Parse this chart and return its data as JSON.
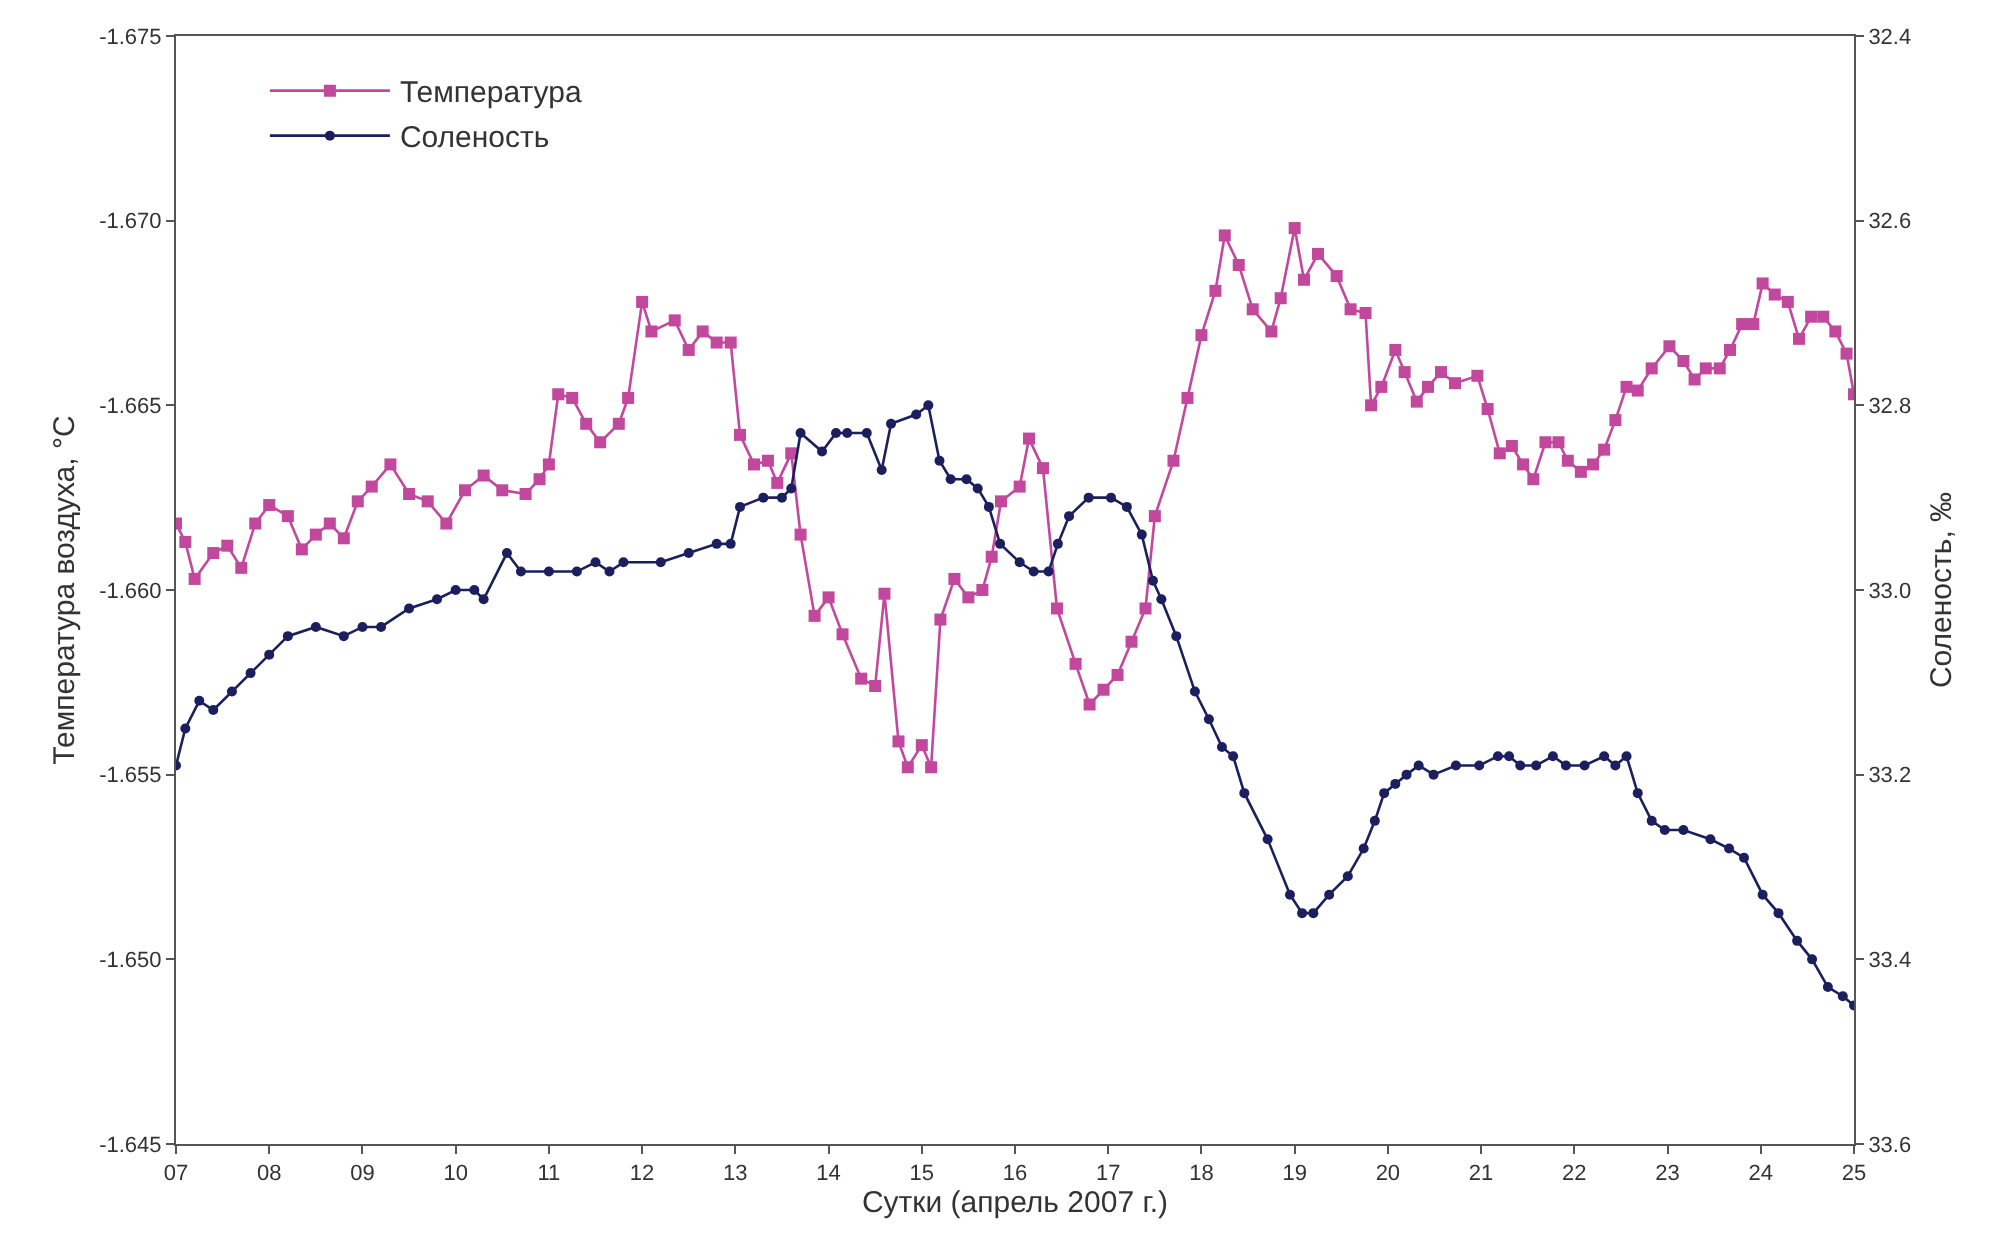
{
  "chart_data": {
    "type": "line",
    "xlabel": "Сутки (апрель 2007 г.)",
    "ylabel": "Температура воздуха, °C",
    "y2label": "Соленость, ‰",
    "xlim": [
      7,
      25
    ],
    "xticks": [
      {
        "value": 7,
        "label": "07"
      },
      {
        "value": 8,
        "label": "08"
      },
      {
        "value": 9,
        "label": "09"
      },
      10,
      11,
      12,
      13,
      14,
      15,
      16,
      17,
      18,
      19,
      20,
      21,
      22,
      23,
      24,
      25
    ],
    "ylim": [
      -1.645,
      -1.675
    ],
    "yticks": [
      -1.675,
      {
        "value": -1.67,
        "label": "-1.670"
      },
      -1.665,
      {
        "value": -1.66,
        "label": "-1.660"
      },
      -1.655,
      {
        "value": -1.65,
        "label": "-1.650"
      },
      -1.645
    ],
    "y2lim": [
      33.6,
      32.4
    ],
    "y2ticks": [
      32.4,
      32.6,
      32.8,
      {
        "value": 33,
        "label": "33.0"
      },
      33.2,
      33.4,
      33.6
    ],
    "legend": "top left",
    "line_style": "solid",
    "series": [
      {
        "name": "Температура",
        "color": "#c2489e",
        "marker": "square",
        "x": [
          7.0,
          7.1,
          7.2,
          7.4,
          7.55,
          7.7,
          7.85,
          8.0,
          8.2,
          8.35,
          8.5,
          8.65,
          8.8,
          8.95,
          9.1,
          9.3,
          9.5,
          9.7,
          9.9,
          10.1,
          10.3,
          10.5,
          10.75,
          10.9,
          11.0,
          11.1,
          11.25,
          11.4,
          11.55,
          11.75,
          11.85,
          12.0,
          12.1,
          12.35,
          12.5,
          12.65,
          12.8,
          12.95,
          13.05,
          13.2,
          13.35,
          13.45,
          13.6,
          13.7,
          13.85,
          14.0,
          14.15,
          14.35,
          14.5,
          14.6,
          14.75,
          14.85,
          15.0,
          15.1,
          15.2,
          15.35,
          15.5,
          15.65,
          15.75,
          15.85,
          16.05,
          16.15,
          16.3,
          16.45,
          16.65,
          16.8,
          16.95,
          17.1,
          17.25,
          17.4,
          17.5,
          17.7,
          17.85,
          18.0,
          18.15,
          18.25,
          18.4,
          18.55,
          18.75,
          18.85,
          19.0,
          19.1,
          19.25,
          19.45,
          19.6,
          19.76,
          19.82,
          19.93,
          20.08,
          20.18,
          20.31,
          20.43,
          20.57,
          20.72,
          20.96,
          21.07,
          21.2,
          21.33,
          21.45,
          21.56,
          21.69,
          21.83,
          21.93,
          22.07,
          22.2,
          22.32,
          22.44,
          22.56,
          22.68,
          22.83,
          23.02,
          23.17,
          23.29,
          23.41,
          23.56,
          23.67,
          23.8,
          23.92,
          24.02,
          24.15,
          24.29,
          24.41,
          24.54,
          24.67,
          24.8,
          24.92,
          25.0
        ],
        "values": [
          -1.6618,
          -1.6613,
          -1.6603,
          -1.661,
          -1.6612,
          -1.6606,
          -1.6618,
          -1.6623,
          -1.662,
          -1.6611,
          -1.6615,
          -1.6618,
          -1.6614,
          -1.6624,
          -1.6628,
          -1.6634,
          -1.6626,
          -1.6624,
          -1.6618,
          -1.6627,
          -1.6631,
          -1.6627,
          -1.6626,
          -1.663,
          -1.6634,
          -1.6653,
          -1.6652,
          -1.6645,
          -1.664,
          -1.6645,
          -1.6652,
          -1.6678,
          -1.667,
          -1.6673,
          -1.6665,
          -1.667,
          -1.6667,
          -1.6667,
          -1.6642,
          -1.6634,
          -1.6635,
          -1.6629,
          -1.6637,
          -1.6615,
          -1.6593,
          -1.6598,
          -1.6588,
          -1.6576,
          -1.6574,
          -1.6599,
          -1.6559,
          -1.6552,
          -1.6558,
          -1.6552,
          -1.6592,
          -1.6603,
          -1.6598,
          -1.66,
          -1.6609,
          -1.6624,
          -1.6628,
          -1.6641,
          -1.6633,
          -1.6595,
          -1.658,
          -1.6569,
          -1.6573,
          -1.6577,
          -1.6586,
          -1.6595,
          -1.662,
          -1.6635,
          -1.6652,
          -1.6669,
          -1.6681,
          -1.6696,
          -1.6688,
          -1.6676,
          -1.667,
          -1.6679,
          -1.6698,
          -1.6684,
          -1.6691,
          -1.6685,
          -1.6676,
          -1.6675,
          -1.665,
          -1.6655,
          -1.6665,
          -1.6659,
          -1.6651,
          -1.6655,
          -1.6659,
          -1.6656,
          -1.6658,
          -1.6649,
          -1.6637,
          -1.6639,
          -1.6634,
          -1.663,
          -1.664,
          -1.664,
          -1.6635,
          -1.6632,
          -1.6634,
          -1.6638,
          -1.6646,
          -1.6655,
          -1.6654,
          -1.666,
          -1.6666,
          -1.6662,
          -1.6657,
          -1.666,
          -1.666,
          -1.6665,
          -1.6672,
          -1.6672,
          -1.6683,
          -1.668,
          -1.6678,
          -1.6668,
          -1.6674,
          -1.6674,
          -1.667,
          -1.6664,
          -1.6653
        ]
      },
      {
        "name": "Соленость",
        "color": "#1b1f5e",
        "marker": "circle",
        "axis": "y2",
        "x": [
          7.0,
          7.1,
          7.25,
          7.4,
          7.6,
          7.8,
          8.0,
          8.2,
          8.5,
          8.8,
          9.0,
          9.2,
          9.5,
          9.8,
          10.0,
          10.2,
          10.3,
          10.55,
          10.7,
          11.0,
          11.3,
          11.5,
          11.65,
          11.8,
          12.2,
          12.5,
          12.8,
          12.95,
          13.05,
          13.3,
          13.5,
          13.6,
          13.7,
          13.93,
          14.08,
          14.2,
          14.41,
          14.57,
          14.67,
          14.94,
          15.07,
          15.19,
          15.31,
          15.48,
          15.6,
          15.72,
          15.84,
          16.05,
          16.2,
          16.36,
          16.46,
          16.58,
          16.79,
          17.03,
          17.2,
          17.36,
          17.48,
          17.57,
          17.73,
          17.93,
          18.08,
          18.22,
          18.34,
          18.46,
          18.71,
          18.95,
          19.08,
          19.2,
          19.37,
          19.57,
          19.74,
          19.86,
          19.96,
          20.08,
          20.2,
          20.33,
          20.49,
          20.73,
          20.98,
          21.18,
          21.3,
          21.42,
          21.59,
          21.77,
          21.91,
          22.11,
          22.32,
          22.44,
          22.56,
          22.68,
          22.83,
          22.97,
          23.17,
          23.46,
          23.66,
          23.82,
          24.02,
          24.19,
          24.39,
          24.55,
          24.72,
          24.88,
          25.0
        ],
        "values": [
          33.19,
          33.15,
          33.12,
          33.13,
          33.11,
          33.09,
          33.07,
          33.05,
          33.04,
          33.05,
          33.04,
          33.04,
          33.02,
          33.01,
          33.0,
          33.0,
          33.01,
          32.96,
          32.98,
          32.98,
          32.98,
          32.97,
          32.98,
          32.97,
          32.97,
          32.96,
          32.95,
          32.95,
          32.91,
          32.9,
          32.9,
          32.89,
          32.83,
          32.85,
          32.83,
          32.83,
          32.83,
          32.87,
          32.82,
          32.81,
          32.8,
          32.86,
          32.88,
          32.88,
          32.89,
          32.91,
          32.95,
          32.97,
          32.98,
          32.98,
          32.95,
          32.92,
          32.9,
          32.9,
          32.91,
          32.94,
          32.99,
          33.01,
          33.05,
          33.11,
          33.14,
          33.17,
          33.18,
          33.22,
          33.27,
          33.33,
          33.35,
          33.35,
          33.33,
          33.31,
          33.28,
          33.25,
          33.22,
          33.21,
          33.2,
          33.19,
          33.2,
          33.19,
          33.19,
          33.18,
          33.18,
          33.19,
          33.19,
          33.18,
          33.19,
          33.19,
          33.18,
          33.19,
          33.18,
          33.22,
          33.25,
          33.26,
          33.26,
          33.27,
          33.28,
          33.29,
          33.33,
          33.35,
          33.38,
          33.4,
          33.43,
          33.44,
          33.45
        ]
      }
    ]
  }
}
